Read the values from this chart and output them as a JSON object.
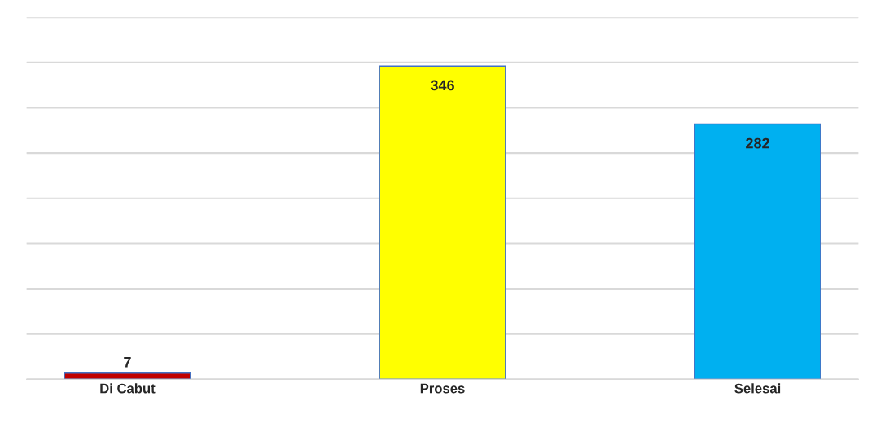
{
  "chart_data": {
    "type": "bar",
    "categories": [
      "Di Cabut",
      "Proses",
      "Selesai"
    ],
    "values": [
      7,
      346,
      282
    ],
    "colors": [
      "#c00000",
      "#ffff00",
      "#00b0f0"
    ],
    "ylim": [
      0,
      400
    ],
    "yticks": [
      {
        "value": 0,
        "label": null
      },
      {
        "value": 50,
        "label": null
      },
      {
        "value": 100,
        "label": null
      },
      {
        "value": 150,
        "label": null
      },
      {
        "value": 200,
        "label": null
      },
      {
        "value": 250,
        "label": null
      },
      {
        "value": 300,
        "label": null
      },
      {
        "value": 350,
        "label": null
      },
      {
        "value": 400,
        "label": null
      }
    ],
    "grid": "y",
    "tick_labels": "x",
    "data_labels": true
  }
}
